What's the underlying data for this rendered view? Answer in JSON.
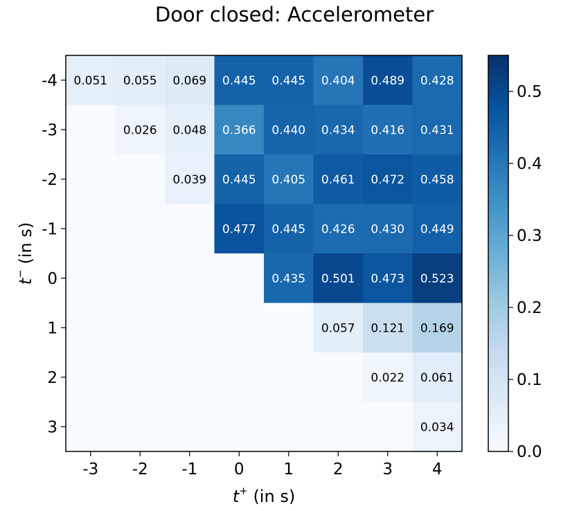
{
  "chart_data": {
    "type": "heatmap",
    "title": "Door closed: Accelerometer",
    "xlabel": {
      "symbol": "t",
      "sup": "+",
      "unit": " (in s)"
    },
    "ylabel": {
      "symbol": "t",
      "sup": "−",
      "unit": " (in s)"
    },
    "x_categories": [
      "-3",
      "-2",
      "-1",
      "0",
      "1",
      "2",
      "3",
      "4"
    ],
    "y_categories": [
      "-4",
      "-3",
      "-2",
      "-1",
      "0",
      "1",
      "2",
      "3"
    ],
    "values": [
      [
        0.051,
        0.055,
        0.069,
        0.445,
        0.445,
        0.404,
        0.489,
        0.428
      ],
      [
        null,
        0.026,
        0.048,
        0.366,
        0.44,
        0.434,
        0.416,
        0.431
      ],
      [
        null,
        null,
        0.039,
        0.445,
        0.405,
        0.461,
        0.472,
        0.458
      ],
      [
        null,
        null,
        null,
        0.477,
        0.445,
        0.426,
        0.43,
        0.449
      ],
      [
        null,
        null,
        null,
        null,
        0.435,
        0.501,
        0.473,
        0.523
      ],
      [
        null,
        null,
        null,
        null,
        null,
        0.057,
        0.121,
        0.169
      ],
      [
        null,
        null,
        null,
        null,
        null,
        null,
        0.022,
        0.061
      ],
      [
        null,
        null,
        null,
        null,
        null,
        null,
        null,
        0.034
      ]
    ],
    "labels": [
      [
        "0.051",
        "0.055",
        "0.069",
        "0.445",
        "0.445",
        "0.404",
        "0.489",
        "0.428"
      ],
      [
        "",
        "0.026",
        "0.048",
        "0.366",
        "0.440",
        "0.434",
        "0.416",
        "0.431"
      ],
      [
        "",
        "",
        "0.039",
        "0.445",
        "0.405",
        "0.461",
        "0.472",
        "0.458"
      ],
      [
        "",
        "",
        "",
        "0.477",
        "0.445",
        "0.426",
        "0.430",
        "0.449"
      ],
      [
        "",
        "",
        "",
        "",
        "0.435",
        "0.501",
        "0.473",
        "0.523"
      ],
      [
        "",
        "",
        "",
        "",
        "",
        "0.057",
        "0.121",
        "0.169"
      ],
      [
        "",
        "",
        "",
        "",
        "",
        "",
        "0.022",
        "0.061"
      ],
      [
        "",
        "",
        "",
        "",
        "",
        "",
        "",
        "0.034"
      ]
    ],
    "colormap": "Blues",
    "vmin": 0.0,
    "vmax": 0.55,
    "colorbar_ticks": [
      "0.0",
      "0.1",
      "0.2",
      "0.3",
      "0.4",
      "0.5"
    ],
    "colorbar_tick_values": [
      0.0,
      0.1,
      0.2,
      0.3,
      0.4,
      0.5
    ],
    "grid": false,
    "colors": {
      "low": "#f7fbff",
      "high": "#08306b",
      "text_light": "#ffffff",
      "text_dark": "#000000"
    }
  }
}
